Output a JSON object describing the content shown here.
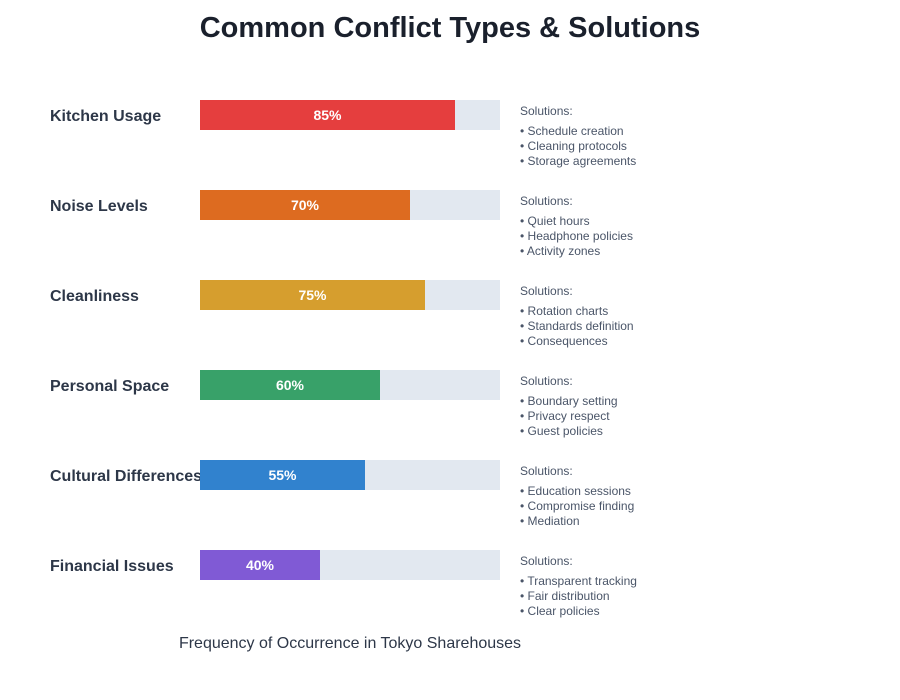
{
  "chart_data": {
    "type": "bar",
    "orientation": "horizontal",
    "title": "Common Conflict Types & Solutions",
    "xlabel": "Frequency of Occurrence in Tokyo Sharehouses",
    "xlim": [
      0,
      100
    ],
    "unit": "%",
    "track_color": "#e2e8f0",
    "solutions_heading": "Solutions:",
    "categories": [
      "Kitchen Usage",
      "Noise Levels",
      "Cleanliness",
      "Personal Space",
      "Cultural Differences",
      "Financial Issues"
    ],
    "values": [
      85,
      70,
      75,
      60,
      55,
      40
    ],
    "data_labels": [
      "85%",
      "70%",
      "75%",
      "60%",
      "55%",
      "40%"
    ],
    "colors": [
      "#e53e3e",
      "#dd6b20",
      "#d69e2e",
      "#38a169",
      "#3182ce",
      "#805ad5"
    ],
    "solutions": [
      [
        "Schedule creation",
        "Cleaning protocols",
        "Storage agreements"
      ],
      [
        "Quiet hours",
        "Headphone policies",
        "Activity zones"
      ],
      [
        "Rotation charts",
        "Standards definition",
        "Consequences"
      ],
      [
        "Boundary setting",
        "Privacy respect",
        "Guest policies"
      ],
      [
        "Education sessions",
        "Compromise finding",
        "Mediation"
      ],
      [
        "Transparent tracking",
        "Fair distribution",
        "Clear policies"
      ]
    ],
    "grid": false,
    "legend": "none"
  }
}
